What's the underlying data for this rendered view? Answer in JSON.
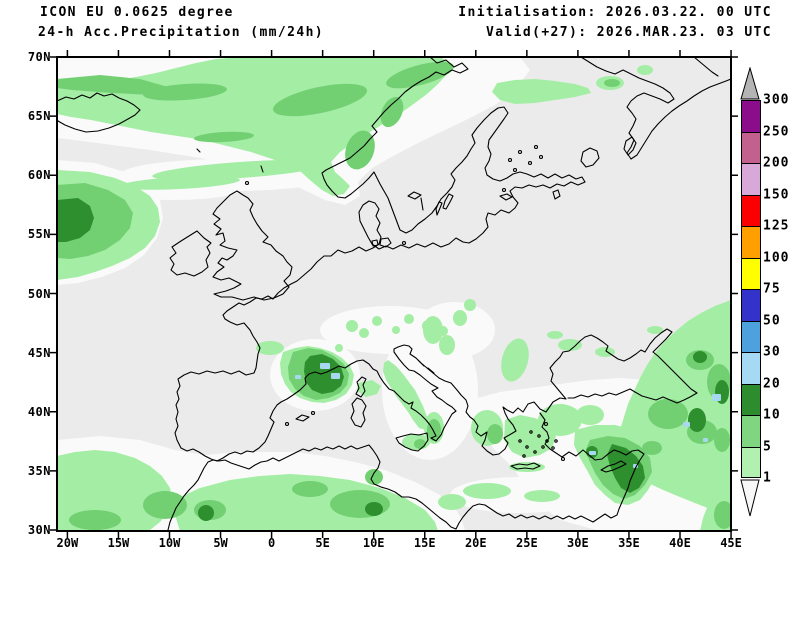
{
  "header": {
    "model_line": "ICON EU 0.0625 degree",
    "product_line": "24-h Acc.Precipitation (mm/24h)",
    "init_line": "Initialisation: 2026.03.22. 00 UTC",
    "valid_line": "Valid(+27): 2026.MAR.23. 03 UTC"
  },
  "axes": {
    "lat_labels": [
      "70N",
      "65N",
      "60N",
      "55N",
      "50N",
      "45N",
      "40N",
      "35N",
      "30N"
    ],
    "lon_labels": [
      "20W",
      "15W",
      "10W",
      "5W",
      "0",
      "5E",
      "10E",
      "15E",
      "20E",
      "25E",
      "30E",
      "35E",
      "40E",
      "45E"
    ]
  },
  "colorbar": {
    "levels": [
      "300",
      "250",
      "200",
      "150",
      "125",
      "100",
      "75",
      "50",
      "30",
      "20",
      "10",
      "5",
      "1"
    ],
    "segment_colors": [
      "#8b0d8b",
      "#c2608e",
      "#d8a8d8",
      "#fb0000",
      "#ffa000",
      "#ffff00",
      "#3333cc",
      "#4da2dd",
      "#a6daf4",
      "#2d8c2d",
      "#80d580",
      "#b2f0b2"
    ],
    "over_color": "#b4b4b4",
    "under_color": "#f8f8f8"
  },
  "map_colors": {
    "background": "#ebebeb",
    "trace": "#fafafa",
    "light_green": "#a4eda4",
    "medium_green": "#72d072",
    "dark_green": "#2e8f2e",
    "shower_blue": "#a8d8f0",
    "coastline": "#000000"
  }
}
